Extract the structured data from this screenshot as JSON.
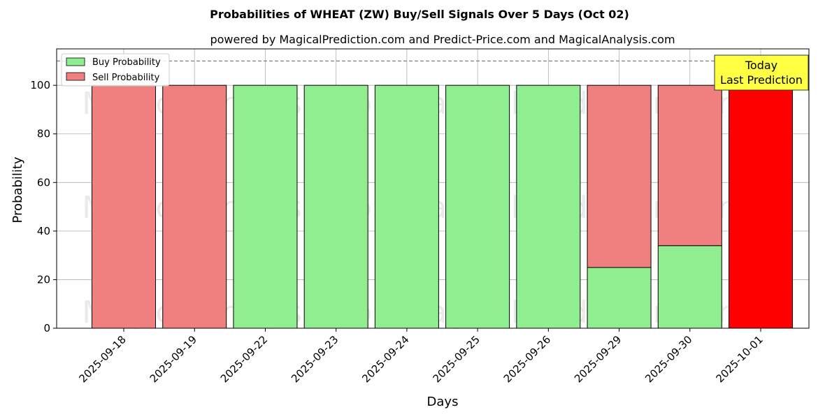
{
  "chart_data": {
    "type": "bar",
    "title": "Probabilities of WHEAT (ZW) Buy/Sell Signals Over 5 Days (Oct 02)",
    "subtitle": "powered by MagicalPrediction.com and Predict-Price.com and MagicalAnalysis.com",
    "xlabel": "Days",
    "ylabel": "Probability",
    "ylim": [
      0,
      115
    ],
    "yticks": [
      0,
      20,
      40,
      60,
      80,
      100
    ],
    "categories": [
      "2025-09-18",
      "2025-09-19",
      "2025-09-22",
      "2025-09-23",
      "2025-09-24",
      "2025-09-25",
      "2025-09-26",
      "2025-09-29",
      "2025-09-30",
      "2025-10-01"
    ],
    "series": [
      {
        "name": "Buy Probability",
        "color": "#90ee90",
        "values": [
          0,
          0,
          100,
          100,
          100,
          100,
          100,
          25,
          34,
          0
        ]
      },
      {
        "name": "Sell Probability",
        "color": "#f08080",
        "values": [
          100,
          100,
          0,
          0,
          0,
          0,
          0,
          75,
          66,
          100
        ]
      }
    ],
    "highlight": {
      "category": "2025-10-01",
      "color": "#ff0000"
    },
    "reference_line": 110,
    "annotation": {
      "lines": [
        "Today",
        "Last Prediction"
      ],
      "color": "#ffff44"
    },
    "legend": "upper-left",
    "grid": true,
    "watermarks": [
      "MagicalAnalysis.com",
      "MagicalPrediction.com"
    ]
  }
}
